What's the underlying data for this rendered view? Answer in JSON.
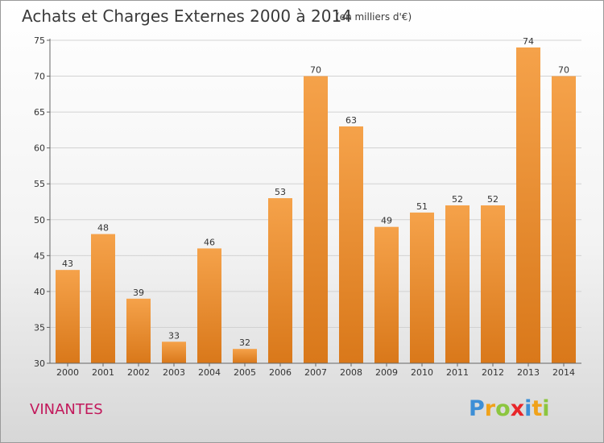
{
  "chart_data": {
    "type": "bar",
    "title": "Achats et Charges Externes 2000 à 2014",
    "subtitle": "(en milliers d'€)",
    "categories": [
      "2000",
      "2001",
      "2002",
      "2003",
      "2004",
      "2005",
      "2006",
      "2007",
      "2008",
      "2009",
      "2010",
      "2011",
      "2012",
      "2013",
      "2014"
    ],
    "values": [
      43,
      48,
      39,
      33,
      46,
      32,
      53,
      70,
      63,
      49,
      51,
      52,
      52,
      74,
      70
    ],
    "ylim": [
      30,
      75
    ],
    "yticks": [
      30,
      35,
      40,
      45,
      50,
      55,
      60,
      65,
      70,
      75
    ],
    "grid": true,
    "bar_color": "#f39c3c",
    "bar_color_dark": "#d9781a"
  },
  "commune": "VINANTES",
  "logo": {
    "text": "Proxiti",
    "letters": [
      {
        "ch": "P",
        "color": "#3d8fd6"
      },
      {
        "ch": "r",
        "color": "#f0a21a"
      },
      {
        "ch": "o",
        "color": "#8cc63f"
      },
      {
        "ch": "x",
        "color": "#e8262a"
      },
      {
        "ch": "i",
        "color": "#3d8fd6"
      },
      {
        "ch": "t",
        "color": "#f0a21a"
      },
      {
        "ch": "i",
        "color": "#8cc63f"
      }
    ]
  }
}
